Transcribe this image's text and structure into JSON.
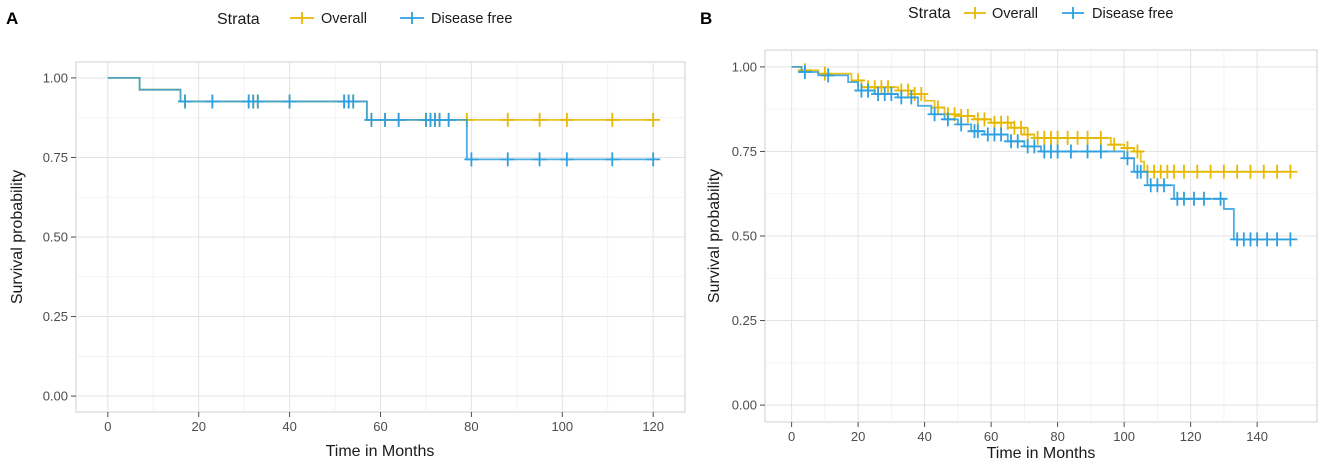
{
  "chart_data": [
    {
      "panel": "A",
      "type": "line",
      "subtype": "kaplan-meier step",
      "legend": {
        "title": "Strata",
        "entries": [
          "Overall",
          "Disease free"
        ]
      },
      "xlabel": "Time in Months",
      "ylabel": "Survival probability",
      "xlim": [
        -7,
        127
      ],
      "ylim": [
        -0.05,
        1.05
      ],
      "xticks": [
        0,
        20,
        40,
        60,
        80,
        100,
        120
      ],
      "yticks": [
        "0.00",
        "0.25",
        "0.50",
        "0.75",
        "1.00"
      ],
      "series": [
        {
          "name": "Overall",
          "color": "#E7B800",
          "steps": [
            [
              0,
              1.0
            ],
            [
              7,
              0.963
            ],
            [
              16,
              0.926
            ],
            [
              57,
              0.868
            ],
            [
              120,
              0.868
            ]
          ],
          "censors": [
            [
              17,
              0.926
            ],
            [
              23,
              0.926
            ],
            [
              31,
              0.926
            ],
            [
              32,
              0.926
            ],
            [
              33,
              0.926
            ],
            [
              40,
              0.926
            ],
            [
              52,
              0.926
            ],
            [
              53,
              0.926
            ],
            [
              54,
              0.926
            ],
            [
              58,
              0.868
            ],
            [
              61,
              0.868
            ],
            [
              64,
              0.868
            ],
            [
              70,
              0.868
            ],
            [
              71,
              0.868
            ],
            [
              72,
              0.868
            ],
            [
              73,
              0.868
            ],
            [
              75,
              0.868
            ],
            [
              79,
              0.868
            ],
            [
              88,
              0.868
            ],
            [
              95,
              0.868
            ],
            [
              101,
              0.868
            ],
            [
              111,
              0.868
            ],
            [
              120,
              0.868
            ]
          ]
        },
        {
          "name": "Disease free",
          "color": "#2E9FDF",
          "steps": [
            [
              0,
              1.0
            ],
            [
              7,
              0.963
            ],
            [
              16,
              0.926
            ],
            [
              57,
              0.868
            ],
            [
              79,
              0.744
            ],
            [
              120,
              0.744
            ]
          ],
          "censors": [
            [
              17,
              0.926
            ],
            [
              23,
              0.926
            ],
            [
              31,
              0.926
            ],
            [
              32,
              0.926
            ],
            [
              33,
              0.926
            ],
            [
              40,
              0.926
            ],
            [
              52,
              0.926
            ],
            [
              53,
              0.926
            ],
            [
              54,
              0.926
            ],
            [
              58,
              0.868
            ],
            [
              61,
              0.868
            ],
            [
              64,
              0.868
            ],
            [
              70,
              0.868
            ],
            [
              71,
              0.868
            ],
            [
              72,
              0.868
            ],
            [
              73,
              0.868
            ],
            [
              75,
              0.868
            ],
            [
              80,
              0.744
            ],
            [
              88,
              0.744
            ],
            [
              95,
              0.744
            ],
            [
              101,
              0.744
            ],
            [
              111,
              0.744
            ],
            [
              120,
              0.744
            ]
          ]
        }
      ]
    },
    {
      "panel": "B",
      "type": "line",
      "subtype": "kaplan-meier step",
      "legend": {
        "title": "Strata",
        "entries": [
          "Overall",
          "Disease free"
        ]
      },
      "xlabel": "Time in Months",
      "ylabel": "Survival probability",
      "xlim": [
        -8,
        158
      ],
      "ylim": [
        -0.05,
        1.05
      ],
      "xticks": [
        0,
        20,
        40,
        60,
        80,
        100,
        120,
        140
      ],
      "yticks": [
        "0.00",
        "0.25",
        "0.50",
        "0.75",
        "1.00"
      ],
      "series": [
        {
          "name": "Overall",
          "color": "#E7B800",
          "steps": [
            [
              0,
              1.0
            ],
            [
              3,
              0.99
            ],
            [
              8,
              0.98
            ],
            [
              18,
              0.96
            ],
            [
              21,
              0.94
            ],
            [
              32,
              0.93
            ],
            [
              36,
              0.92
            ],
            [
              40,
              0.9
            ],
            [
              43,
              0.88
            ],
            [
              46,
              0.86
            ],
            [
              50,
              0.855
            ],
            [
              55,
              0.845
            ],
            [
              60,
              0.835
            ],
            [
              66,
              0.82
            ],
            [
              70,
              0.8
            ],
            [
              73,
              0.79
            ],
            [
              96,
              0.77
            ],
            [
              100,
              0.76
            ],
            [
              103,
              0.75
            ],
            [
              105,
              0.72
            ],
            [
              106,
              0.69
            ],
            [
              150,
              0.69
            ]
          ],
          "censors": [
            [
              4,
              0.99
            ],
            [
              10,
              0.98
            ],
            [
              20,
              0.96
            ],
            [
              23,
              0.94
            ],
            [
              25,
              0.94
            ],
            [
              27,
              0.94
            ],
            [
              29,
              0.94
            ],
            [
              33,
              0.93
            ],
            [
              35,
              0.93
            ],
            [
              37,
              0.92
            ],
            [
              39,
              0.92
            ],
            [
              44,
              0.88
            ],
            [
              47,
              0.86
            ],
            [
              49,
              0.86
            ],
            [
              51,
              0.855
            ],
            [
              53,
              0.855
            ],
            [
              56,
              0.845
            ],
            [
              58,
              0.845
            ],
            [
              61,
              0.835
            ],
            [
              63,
              0.835
            ],
            [
              65,
              0.835
            ],
            [
              67,
              0.82
            ],
            [
              69,
              0.82
            ],
            [
              71,
              0.8
            ],
            [
              74,
              0.79
            ],
            [
              76,
              0.79
            ],
            [
              78,
              0.79
            ],
            [
              80,
              0.79
            ],
            [
              83,
              0.79
            ],
            [
              86,
              0.79
            ],
            [
              89,
              0.79
            ],
            [
              93,
              0.79
            ],
            [
              97,
              0.77
            ],
            [
              101,
              0.76
            ],
            [
              104,
              0.75
            ],
            [
              107,
              0.69
            ],
            [
              109,
              0.69
            ],
            [
              111,
              0.69
            ],
            [
              113,
              0.69
            ],
            [
              115,
              0.69
            ],
            [
              118,
              0.69
            ],
            [
              122,
              0.69
            ],
            [
              126,
              0.69
            ],
            [
              130,
              0.69
            ],
            [
              134,
              0.69
            ],
            [
              138,
              0.69
            ],
            [
              142,
              0.69
            ],
            [
              146,
              0.69
            ],
            [
              150,
              0.69
            ]
          ]
        },
        {
          "name": "Disease free",
          "color": "#2E9FDF",
          "steps": [
            [
              0,
              1.0
            ],
            [
              3,
              0.985
            ],
            [
              8,
              0.975
            ],
            [
              17,
              0.955
            ],
            [
              20,
              0.93
            ],
            [
              25,
              0.92
            ],
            [
              32,
              0.91
            ],
            [
              38,
              0.885
            ],
            [
              42,
              0.86
            ],
            [
              46,
              0.845
            ],
            [
              50,
              0.83
            ],
            [
              54,
              0.81
            ],
            [
              58,
              0.8
            ],
            [
              65,
              0.78
            ],
            [
              70,
              0.765
            ],
            [
              75,
              0.75
            ],
            [
              100,
              0.73
            ],
            [
              103,
              0.69
            ],
            [
              107,
              0.65
            ],
            [
              115,
              0.61
            ],
            [
              130,
              0.58
            ],
            [
              133,
              0.49
            ],
            [
              150,
              0.49
            ]
          ],
          "censors": [
            [
              4,
              0.985
            ],
            [
              11,
              0.975
            ],
            [
              21,
              0.93
            ],
            [
              23,
              0.93
            ],
            [
              26,
              0.92
            ],
            [
              28,
              0.92
            ],
            [
              30,
              0.92
            ],
            [
              33,
              0.91
            ],
            [
              36,
              0.91
            ],
            [
              43,
              0.86
            ],
            [
              47,
              0.845
            ],
            [
              51,
              0.83
            ],
            [
              55,
              0.81
            ],
            [
              56,
              0.81
            ],
            [
              59,
              0.8
            ],
            [
              61,
              0.8
            ],
            [
              63,
              0.8
            ],
            [
              66,
              0.78
            ],
            [
              68,
              0.78
            ],
            [
              71,
              0.765
            ],
            [
              73,
              0.765
            ],
            [
              76,
              0.75
            ],
            [
              78,
              0.75
            ],
            [
              80,
              0.75
            ],
            [
              84,
              0.75
            ],
            [
              89,
              0.75
            ],
            [
              93,
              0.75
            ],
            [
              101,
              0.73
            ],
            [
              104,
              0.69
            ],
            [
              105,
              0.69
            ],
            [
              108,
              0.65
            ],
            [
              110,
              0.65
            ],
            [
              112,
              0.65
            ],
            [
              116,
              0.61
            ],
            [
              118,
              0.61
            ],
            [
              121,
              0.61
            ],
            [
              124,
              0.61
            ],
            [
              129,
              0.61
            ],
            [
              134,
              0.49
            ],
            [
              136,
              0.49
            ],
            [
              138,
              0.49
            ],
            [
              140,
              0.49
            ],
            [
              143,
              0.49
            ],
            [
              146,
              0.49
            ],
            [
              150,
              0.49
            ]
          ]
        }
      ]
    }
  ]
}
